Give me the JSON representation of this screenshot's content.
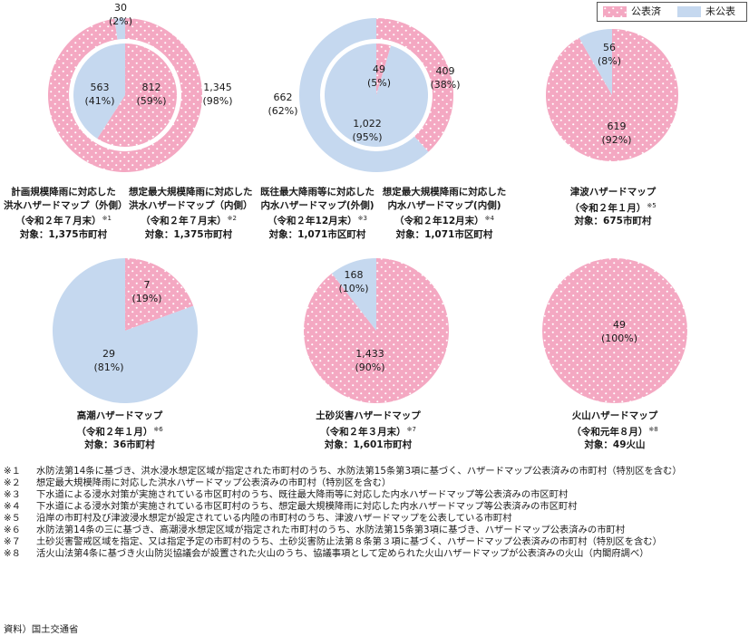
{
  "legend": {
    "published": "公表済",
    "unpublished": "未公表"
  },
  "colors": {
    "published": "#f4a8c2",
    "published_dots": "#ffffff",
    "unpublished": "#c5d8ef",
    "ring_divider": "#ffffff"
  },
  "chart_data": [
    {
      "type": "pie",
      "chart": "flood-external-outer-ring",
      "categories": [
        "公表済",
        "未公表"
      ],
      "values": [
        1345,
        30
      ],
      "labels": [
        [
          "1,345",
          "(98%)"
        ],
        [
          "30",
          "(2%)"
        ]
      ]
    },
    {
      "type": "pie",
      "chart": "flood-external-inner",
      "categories": [
        "公表済",
        "未公表"
      ],
      "values": [
        812,
        563
      ],
      "labels": [
        [
          "812",
          "(59%)"
        ],
        [
          "563",
          "(41%)"
        ]
      ]
    },
    {
      "type": "pie",
      "chart": "inland-outer-ring",
      "categories": [
        "公表済",
        "未公表"
      ],
      "values": [
        409,
        662
      ],
      "labels": [
        [
          "409",
          "(38%)"
        ],
        [
          "662",
          "(62%)"
        ]
      ]
    },
    {
      "type": "pie",
      "chart": "inland-inner",
      "categories": [
        "公表済",
        "未公表"
      ],
      "values": [
        49,
        1022
      ],
      "labels": [
        [
          "49",
          "(5%)"
        ],
        [
          "1,022",
          "(95%)"
        ]
      ]
    },
    {
      "type": "pie",
      "chart": "tsunami",
      "categories": [
        "公表済",
        "未公表"
      ],
      "values": [
        619,
        56
      ],
      "labels": [
        [
          "619",
          "(92%)"
        ],
        [
          "56",
          "(8%)"
        ]
      ]
    },
    {
      "type": "pie",
      "chart": "storm-surge",
      "categories": [
        "公表済",
        "未公表"
      ],
      "values": [
        7,
        29
      ],
      "labels": [
        [
          "7",
          "(19%)"
        ],
        [
          "29",
          "(81%)"
        ]
      ]
    },
    {
      "type": "pie",
      "chart": "landslide",
      "categories": [
        "公表済",
        "未公表"
      ],
      "values": [
        1433,
        168
      ],
      "labels": [
        [
          "1,433",
          "(90%)"
        ],
        [
          "168",
          "(10%)"
        ]
      ]
    },
    {
      "type": "pie",
      "chart": "volcano",
      "categories": [
        "公表済",
        "未公表"
      ],
      "values": [
        49,
        0
      ],
      "labels": [
        [
          "49",
          "(100%)"
        ],
        null
      ]
    }
  ],
  "captions": {
    "flood_outer": {
      "line1": "計画規模降雨に対応した",
      "line2": "洪水ハザードマップ（外側）",
      "line3": "（令和２年７月末）",
      "sup": "※1",
      "line4": "対象：1,375市町村"
    },
    "flood_inner": {
      "line1": "想定最大規模降雨に対応した",
      "line2": "洪水ハザードマップ（内側）",
      "line3": "（令和２年７月末）",
      "sup": "※2",
      "line4": "対象：1,375市町村"
    },
    "inland_outer": {
      "line1": "既往最大降雨等に対応した",
      "line2": "内水ハザードマップ(外側)",
      "line3": "（令和２年12月末）",
      "sup": "※3",
      "line4": "対象：1,071市区町村"
    },
    "inland_inner": {
      "line1": "想定最大規模降雨に対応した",
      "line2": "内水ハザードマップ(内側)",
      "line3": "（令和２年12月末）",
      "sup": "※4",
      "line4": "対象：1,071市区町村"
    },
    "tsunami": {
      "line1": "津波ハザードマップ",
      "line2": "（令和２年１月）",
      "sup": "※5",
      "line3": "対象：675市町村"
    },
    "storm_surge": {
      "line1": "高潮ハザードマップ",
      "line2": "（令和２年１月）",
      "sup": "※6",
      "line3": "対象：36市町村"
    },
    "landslide": {
      "line1": "土砂災害ハザードマップ",
      "line2": "（令和２年３月末）",
      "sup": "※7",
      "line3": "対象：1,601市町村"
    },
    "volcano": {
      "line1": "火山ハザードマップ",
      "line2": "（令和元年８月）",
      "sup": "※8",
      "line3": "対象：49火山"
    }
  },
  "notes": [
    {
      "mark": "※１",
      "text": "水防法第14条に基づき、洪水浸水想定区域が指定された市町村のうち、水防法第15条第3項に基づく、ハザードマップ公表済みの市町村（特別区を含む）"
    },
    {
      "mark": "※２",
      "text": "想定最大規模降雨に対応した洪水ハザードマップ公表済みの市町村（特別区を含む）"
    },
    {
      "mark": "※３",
      "text": "下水道による浸水対策が実施されている市区町村のうち、既往最大降雨等に対応した内水ハザードマップ等公表済みの市区町村"
    },
    {
      "mark": "※４",
      "text": "下水道による浸水対策が実施されている市区町村のうち、想定最大規模降雨に対応した内水ハザードマップ等公表済みの市区町村"
    },
    {
      "mark": "※５",
      "text": "沿岸の市町村及び津波浸水想定が設定されている内陸の市町村のうち、津波ハザードマップを公表している市町村"
    },
    {
      "mark": "※６",
      "text": "水防法第14条の三に基づき、高潮浸水想定区域が指定された市町村のうち、水防法第15条第3項に基づき、ハザードマップ公表済みの市町村"
    },
    {
      "mark": "※７",
      "text": "土砂災害警戒区域を指定、又は指定予定の市町村のうち、土砂災害防止法第８条第３項に基づく、ハザードマップ公表済みの市町村（特別区を含む）"
    },
    {
      "mark": "※８",
      "text": "活火山法第4条に基づき火山防災協議会が設置された火山のうち、協議事項として定められた火山ハザードマップが公表済みの火山（内閣府調べ）"
    }
  ],
  "source": "資料）国土交通省"
}
